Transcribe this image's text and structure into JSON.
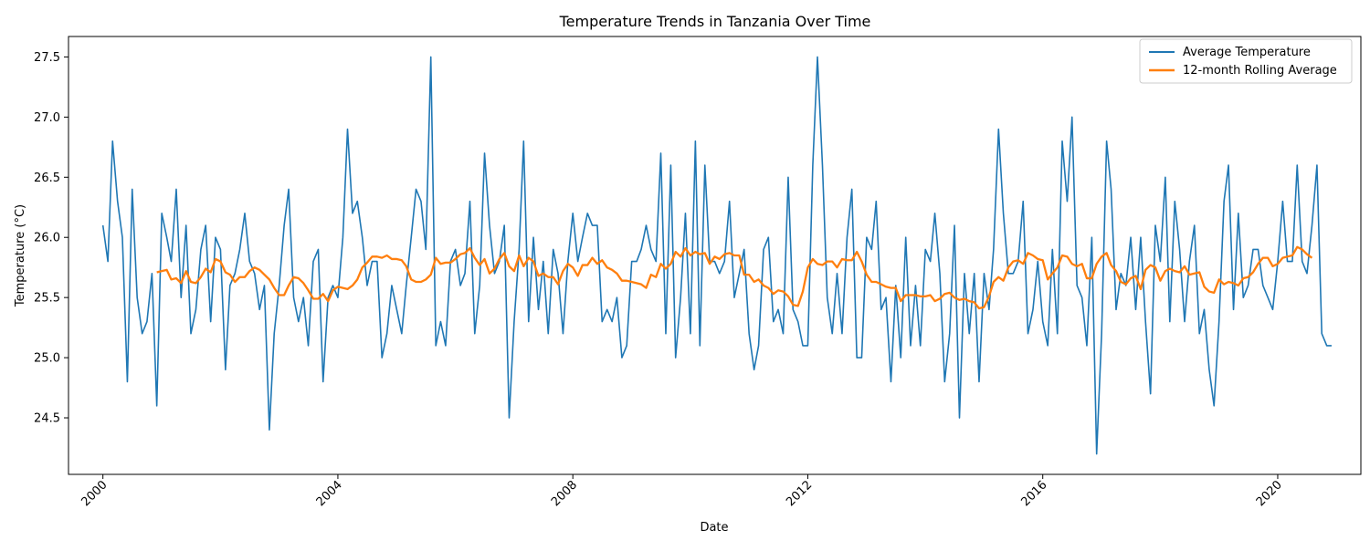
{
  "chart_data": {
    "type": "line",
    "title": "Temperature Trends in Tanzania Over Time",
    "xlabel": "Date",
    "ylabel": "Temperature (°C)",
    "x_start": "2000-01",
    "x_step": "1 month",
    "xlim": [
      "1999-06-01",
      "2021-06-01"
    ],
    "ylim": [
      24.03,
      27.67
    ],
    "x_ticks": [
      "2000",
      "2004",
      "2008",
      "2012",
      "2016",
      "2020"
    ],
    "y_ticks": [
      "24.5",
      "25.0",
      "25.5",
      "26.0",
      "26.5",
      "27.0",
      "27.5"
    ],
    "grid": false,
    "legend_position": "top-right",
    "series": [
      {
        "name": "Average Temperature",
        "color": "#1f77b4",
        "values": [
          26.1,
          25.8,
          26.8,
          26.3,
          26.0,
          24.8,
          26.4,
          25.5,
          25.2,
          25.3,
          25.7,
          24.6,
          26.2,
          26.0,
          25.8,
          26.4,
          25.5,
          26.1,
          25.2,
          25.4,
          25.9,
          26.1,
          25.3,
          26.0,
          25.9,
          24.9,
          25.6,
          25.7,
          25.9,
          26.2,
          25.8,
          25.7,
          25.4,
          25.6,
          24.4,
          25.2,
          25.6,
          26.1,
          26.4,
          25.5,
          25.3,
          25.5,
          25.1,
          25.8,
          25.9,
          24.8,
          25.5,
          25.6,
          25.5,
          26.0,
          26.9,
          26.2,
          26.3,
          26.0,
          25.6,
          25.8,
          25.8,
          25.0,
          25.2,
          25.6,
          25.4,
          25.2,
          25.6,
          26.0,
          26.4,
          26.3,
          25.9,
          27.5,
          25.1,
          25.3,
          25.1,
          25.8,
          25.9,
          25.6,
          25.7,
          26.3,
          25.2,
          25.6,
          26.7,
          26.1,
          25.7,
          25.8,
          26.1,
          24.5,
          25.3,
          25.9,
          26.8,
          25.3,
          26.0,
          25.4,
          25.8,
          25.2,
          25.9,
          25.7,
          25.2,
          25.8,
          26.2,
          25.8,
          26.0,
          26.2,
          26.1,
          26.1,
          25.3,
          25.4,
          25.3,
          25.5,
          25.0,
          25.1,
          25.8,
          25.8,
          25.9,
          26.1,
          25.9,
          25.8,
          26.7,
          25.2,
          26.6,
          25.0,
          25.5,
          26.2,
          25.2,
          26.8,
          25.1,
          26.6,
          25.8,
          25.8,
          25.7,
          25.8,
          26.3,
          25.5,
          25.7,
          25.9,
          25.2,
          24.9,
          25.1,
          25.9,
          26.0,
          25.3,
          25.4,
          25.2,
          26.5,
          25.4,
          25.3,
          25.1,
          25.1,
          26.6,
          27.5,
          26.6,
          25.5,
          25.2,
          25.7,
          25.2,
          26.0,
          26.4,
          25.0,
          25.0,
          26.0,
          25.9,
          26.3,
          25.4,
          25.5,
          24.8,
          25.6,
          25.0,
          26.0,
          25.1,
          25.6,
          25.1,
          25.9,
          25.8,
          26.2,
          25.7,
          24.8,
          25.2,
          26.1,
          24.5,
          25.7,
          25.2,
          25.7,
          24.8,
          25.7,
          25.4,
          25.9,
          26.9,
          26.2,
          25.7,
          25.7,
          25.8,
          26.3,
          25.2,
          25.4,
          25.8,
          25.3,
          25.1,
          25.9,
          25.2,
          26.8,
          26.3,
          27.0,
          25.6,
          25.5,
          25.1,
          26.0,
          24.2,
          25.2,
          26.8,
          26.4,
          25.4,
          25.7,
          25.6,
          26.0,
          25.4,
          26.0,
          25.3,
          24.7,
          26.1,
          25.8,
          26.5,
          25.3,
          26.3,
          25.9,
          25.3,
          25.8,
          26.1,
          25.2,
          25.4,
          24.9,
          24.6,
          25.3,
          26.3,
          26.6,
          25.4,
          26.2,
          25.5,
          25.6,
          25.9,
          25.9,
          25.6,
          25.5,
          25.4,
          25.8,
          26.3,
          25.8,
          25.8,
          26.6,
          25.8,
          25.7,
          26.1,
          26.6,
          25.2,
          25.1,
          25.1
        ]
      },
      {
        "name": "12-month Rolling Average",
        "color": "#ff7f0e",
        "start_index": 11,
        "values": [
          25.71,
          25.72,
          25.73,
          25.65,
          25.66,
          25.62,
          25.72,
          25.63,
          25.62,
          25.67,
          25.74,
          25.71,
          25.82,
          25.8,
          25.71,
          25.69,
          25.63,
          25.67,
          25.67,
          25.72,
          25.75,
          25.73,
          25.69,
          25.65,
          25.58,
          25.52,
          25.52,
          25.6,
          25.67,
          25.66,
          25.62,
          25.56,
          25.49,
          25.49,
          25.53,
          25.47,
          25.56,
          25.59,
          25.58,
          25.57,
          25.6,
          25.65,
          25.75,
          25.79,
          25.84,
          25.84,
          25.83,
          25.85,
          25.82,
          25.82,
          25.81,
          25.76,
          25.65,
          25.63,
          25.63,
          25.65,
          25.69,
          25.83,
          25.78,
          25.79,
          25.79,
          25.82,
          25.86,
          25.87,
          25.91,
          25.83,
          25.77,
          25.82,
          25.7,
          25.74,
          25.82,
          25.87,
          25.76,
          25.72,
          25.85,
          25.76,
          25.83,
          25.8,
          25.68,
          25.7,
          25.67,
          25.67,
          25.61,
          25.72,
          25.78,
          25.75,
          25.68,
          25.77,
          25.77,
          25.83,
          25.78,
          25.81,
          25.75,
          25.73,
          25.7,
          25.64,
          25.64,
          25.63,
          25.62,
          25.61,
          25.58,
          25.69,
          25.67,
          25.78,
          25.74,
          25.78,
          25.88,
          25.84,
          25.91,
          25.85,
          25.88,
          25.86,
          25.87,
          25.78,
          25.84,
          25.82,
          25.86,
          25.87,
          25.85,
          25.85,
          25.69,
          25.69,
          25.63,
          25.65,
          25.6,
          25.58,
          25.53,
          25.56,
          25.55,
          25.51,
          25.44,
          25.43,
          25.55,
          25.75,
          25.82,
          25.78,
          25.77,
          25.8,
          25.8,
          25.75,
          25.82,
          25.81,
          25.81,
          25.88,
          25.8,
          25.69,
          25.63,
          25.63,
          25.61,
          25.59,
          25.58,
          25.58,
          25.47,
          25.52,
          25.52,
          25.52,
          25.51,
          25.51,
          25.52,
          25.47,
          25.49,
          25.53,
          25.54,
          25.5,
          25.48,
          25.49,
          25.47,
          25.46,
          25.41,
          25.42,
          25.51,
          25.63,
          25.67,
          25.64,
          25.75,
          25.8,
          25.81,
          25.78,
          25.87,
          25.85,
          25.82,
          25.81,
          25.65,
          25.7,
          25.75,
          25.85,
          25.84,
          25.78,
          25.76,
          25.78,
          25.66,
          25.66,
          25.78,
          25.84,
          25.87,
          25.77,
          25.72,
          25.63,
          25.61,
          25.66,
          25.68,
          25.57,
          25.73,
          25.77,
          25.75,
          25.64,
          25.72,
          25.74,
          25.72,
          25.71,
          25.76,
          25.69,
          25.7,
          25.71,
          25.59,
          25.55,
          25.54,
          25.65,
          25.61,
          25.63,
          25.62,
          25.6,
          25.66,
          25.67,
          25.71,
          25.78,
          25.83,
          25.83,
          25.76,
          25.78,
          25.83,
          25.84,
          25.85,
          25.92,
          25.9,
          25.86,
          25.83
        ]
      }
    ]
  }
}
